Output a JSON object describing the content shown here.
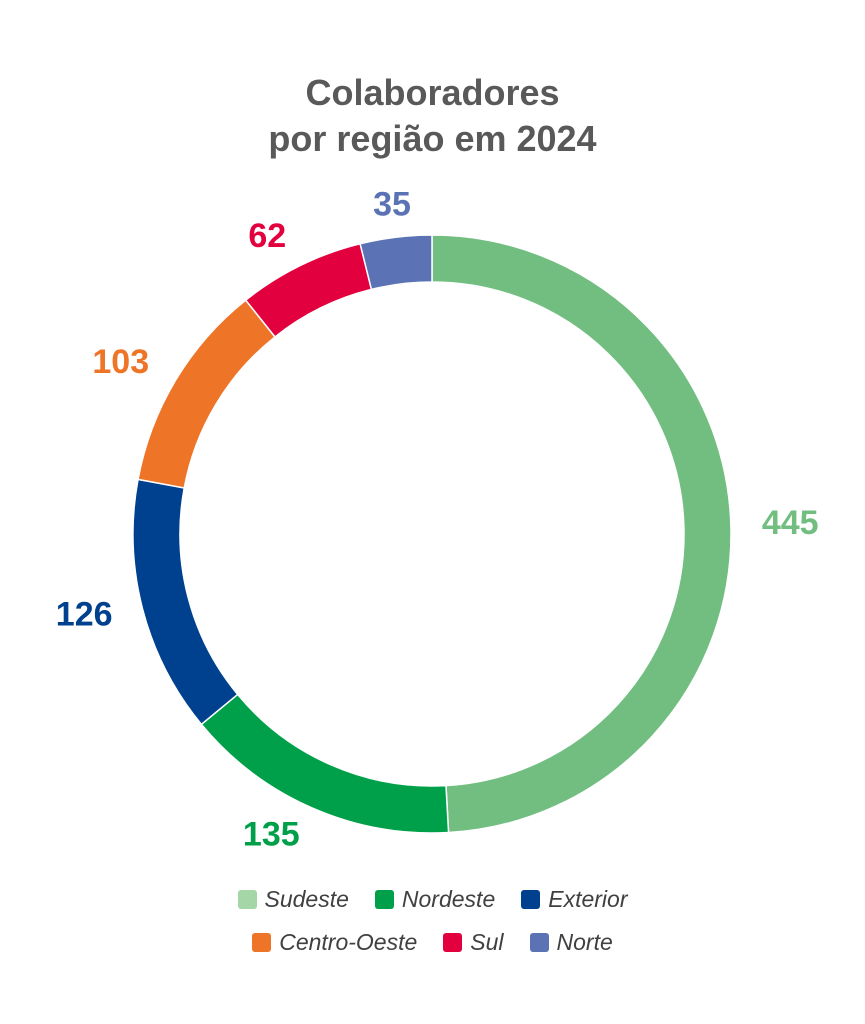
{
  "chart_data": {
    "type": "pie",
    "title_lines": [
      "Colaboradores",
      "por região em 2024"
    ],
    "categories": [
      "Sudeste",
      "Nordeste",
      "Exterior",
      "Centro-Oeste",
      "Sul",
      "Norte"
    ],
    "values": [
      445,
      135,
      126,
      103,
      62,
      35
    ],
    "colors": [
      "#72BE81",
      "#00A04A",
      "#00418F",
      "#EE7427",
      "#E2003F",
      "#5B73B4"
    ],
    "legend": {
      "position": "bottom",
      "rows": [
        [
          "Sudeste",
          "Nordeste",
          "Exterior"
        ],
        [
          "Centro-Oeste",
          "Sul",
          "Norte"
        ]
      ]
    }
  }
}
